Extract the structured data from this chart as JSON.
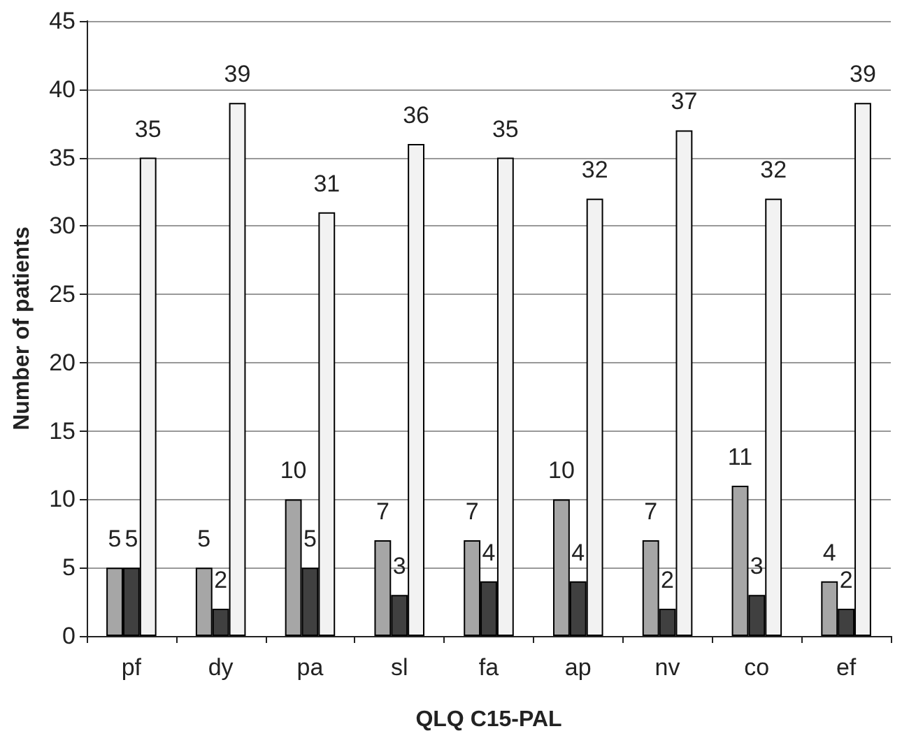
{
  "chart_data": {
    "type": "bar",
    "xlabel": "QLQ C15-PAL",
    "ylabel": "Number of patients",
    "categories": [
      "pf",
      "dy",
      "pa",
      "sl",
      "fa",
      "ap",
      "nv",
      "co",
      "ef"
    ],
    "series": [
      {
        "color": "#a6a6a6",
        "values": [
          5,
          5,
          10,
          7,
          7,
          10,
          7,
          11,
          4
        ]
      },
      {
        "color": "#404040",
        "values": [
          5,
          2,
          5,
          3,
          4,
          4,
          2,
          3,
          2
        ]
      },
      {
        "color": "#f2f2f2",
        "values": [
          35,
          39,
          31,
          36,
          35,
          32,
          37,
          32,
          39
        ]
      }
    ],
    "ylim": [
      0,
      45
    ],
    "yticks": [
      0,
      5,
      10,
      15,
      20,
      25,
      30,
      35,
      40,
      45
    ],
    "grid": "y",
    "data_labels": true
  }
}
